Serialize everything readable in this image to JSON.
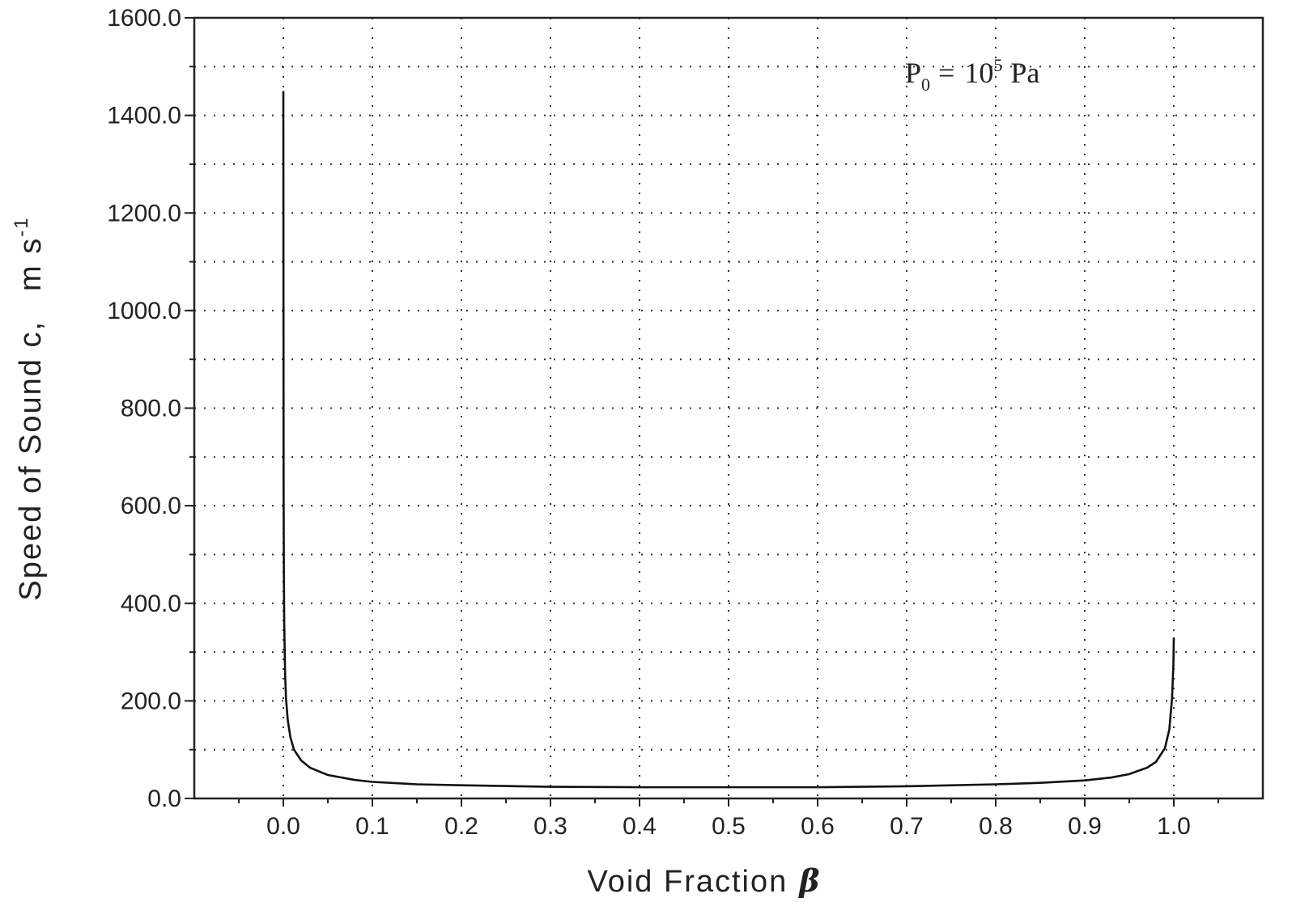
{
  "chart_data": {
    "type": "line",
    "title": "",
    "xlabel": "Void Fraction",
    "xlabel_symbol": "β",
    "ylabel": "Speed of Sound c,",
    "ylabel_unit": "m s",
    "ylabel_unit_exp": "-1",
    "annotation": {
      "base": "P",
      "sub": "0",
      "eq": "=",
      "mant": "10",
      "exp": "5",
      "unit": "Pa"
    },
    "xlim": [
      -0.1,
      1.1
    ],
    "ylim": [
      0,
      1600
    ],
    "x_ticks": [
      0.0,
      0.1,
      0.2,
      0.3,
      0.4,
      0.5,
      0.6,
      0.7,
      0.8,
      0.9,
      1.0
    ],
    "x_tick_labels": [
      "0.0",
      "0.1",
      "0.2",
      "0.3",
      "0.4",
      "0.5",
      "0.6",
      "0.7",
      "0.8",
      "0.9",
      "1.0"
    ],
    "y_ticks": [
      0,
      200,
      400,
      600,
      800,
      1000,
      1200,
      1400,
      1600
    ],
    "y_tick_labels": [
      "0.0",
      "200.0",
      "400.0",
      "600.0",
      "800.0",
      "1000.0",
      "1200.0",
      "1400.0",
      "1600.0"
    ],
    "grid": true,
    "series": [
      {
        "x": [
          0.0,
          0.0003,
          0.0006,
          0.001,
          0.002,
          0.003,
          0.005,
          0.008,
          0.012,
          0.02,
          0.03,
          0.05,
          0.08,
          0.1,
          0.15,
          0.2,
          0.3,
          0.4,
          0.5,
          0.6,
          0.7,
          0.8,
          0.85,
          0.9,
          0.93,
          0.95,
          0.97,
          0.98,
          0.99,
          0.995,
          0.998,
          0.9995,
          1.0
        ],
        "y": [
          1450,
          640,
          460,
          360,
          255,
          205,
          160,
          125,
          100,
          78,
          63,
          48,
          38,
          34,
          29,
          27,
          24,
          23,
          23,
          23,
          25,
          29,
          32,
          37,
          43,
          50,
          63,
          75,
          103,
          142,
          205,
          272,
          330
        ]
      }
    ]
  }
}
